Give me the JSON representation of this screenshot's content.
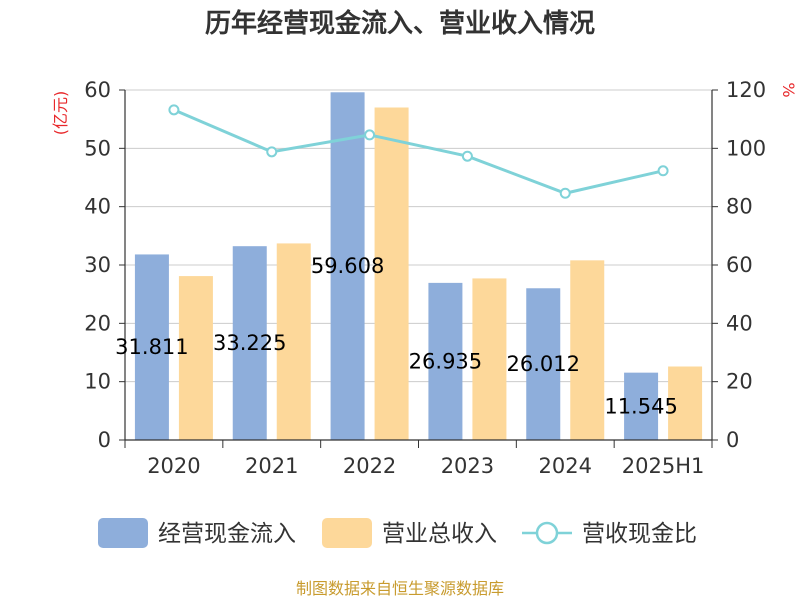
{
  "chart_data": {
    "type": "bar",
    "title": "历年经营现金流入、营业收入情况",
    "categories": [
      "2020",
      "2021",
      "2022",
      "2023",
      "2024",
      "2025H1"
    ],
    "left_unit": "(亿元)",
    "right_unit": "%",
    "left_axis": {
      "ylim": [
        0,
        60
      ],
      "ticks": [
        "0",
        "10",
        "20",
        "30",
        "40",
        "50",
        "60"
      ]
    },
    "right_axis": {
      "ylim": [
        0,
        120
      ],
      "ticks": [
        "0",
        "20",
        "40",
        "60",
        "80",
        "100",
        "120"
      ]
    },
    "grid": true,
    "legend_position": "bottom",
    "series": [
      {
        "name": "经营现金流入",
        "type": "bar",
        "axis": "left",
        "color": "#8eaedb",
        "values": [
          31.811,
          33.225,
          59.608,
          26.935,
          26.012,
          11.545
        ],
        "labels": [
          "31.811",
          "33.225",
          "59.608",
          "26.935",
          "26.012",
          "11.545"
        ]
      },
      {
        "name": "营业总收入",
        "type": "bar",
        "axis": "left",
        "color": "#fdd89a",
        "values": [
          28.1,
          33.7,
          57.0,
          27.7,
          30.8,
          12.6
        ]
      },
      {
        "name": "营收现金比",
        "type": "line",
        "axis": "right",
        "color": "#7fd2d8",
        "values": [
          113.2,
          98.8,
          104.6,
          97.3,
          84.6,
          92.3
        ]
      }
    ]
  },
  "source": "制图数据来自恒生聚源数据库"
}
